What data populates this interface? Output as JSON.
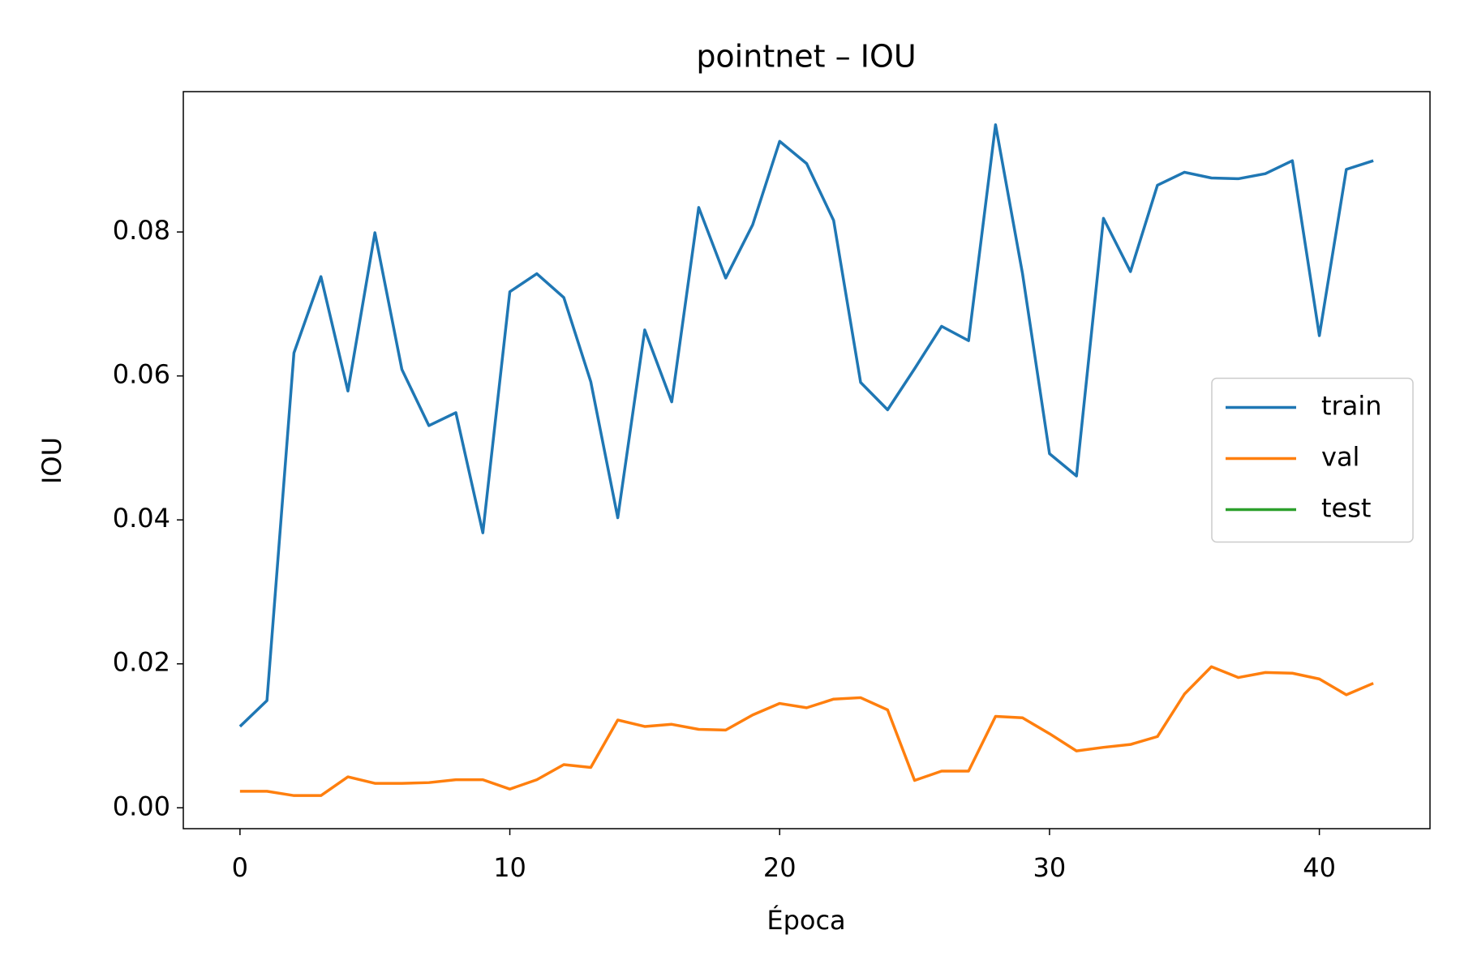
{
  "chart_data": {
    "type": "line",
    "title": "pointnet – IOU",
    "xlabel": "Época",
    "ylabel": "IOU",
    "x": [
      0,
      1,
      2,
      3,
      4,
      5,
      6,
      7,
      8,
      9,
      10,
      11,
      12,
      13,
      14,
      15,
      16,
      17,
      18,
      19,
      20,
      21,
      22,
      23,
      24,
      25,
      26,
      27,
      28,
      29,
      30,
      31,
      32,
      33,
      34,
      35,
      36,
      37,
      38,
      39,
      40,
      41,
      42
    ],
    "series": [
      {
        "name": "train",
        "color": "#1f77b4",
        "values": [
          0.0113,
          0.0149,
          0.0632,
          0.0738,
          0.0579,
          0.0799,
          0.0609,
          0.0531,
          0.0549,
          0.0382,
          0.0717,
          0.0742,
          0.0709,
          0.0592,
          0.0403,
          0.0664,
          0.0564,
          0.0834,
          0.0736,
          0.081,
          0.0926,
          0.0895,
          0.0816,
          0.0591,
          0.0553,
          0.061,
          0.0669,
          0.0649,
          0.0949,
          0.0742,
          0.0492,
          0.0461,
          0.0819,
          0.0745,
          0.0865,
          0.0883,
          0.0875,
          0.0874,
          0.0881,
          0.0899,
          0.0656,
          0.0887,
          0.0899
        ]
      },
      {
        "name": "val",
        "color": "#ff7f0e",
        "values": [
          0.0023,
          0.0023,
          0.0017,
          0.0017,
          0.0043,
          0.0034,
          0.0034,
          0.0035,
          0.0039,
          0.0039,
          0.0026,
          0.0039,
          0.006,
          0.0056,
          0.0122,
          0.0113,
          0.0116,
          0.0109,
          0.0108,
          0.0129,
          0.0145,
          0.0139,
          0.0151,
          0.0153,
          0.0136,
          0.0038,
          0.0051,
          0.0051,
          0.0127,
          0.0125,
          0.0103,
          0.0079,
          0.0084,
          0.0088,
          0.0099,
          0.0158,
          0.0196,
          0.0181,
          0.0188,
          0.0187,
          0.0179,
          0.0157,
          0.0173
        ]
      },
      {
        "name": "test",
        "color": "#2ca02c",
        "values": [
          null,
          null,
          null,
          null,
          null,
          null,
          null,
          null,
          null,
          null,
          null,
          null,
          null,
          null,
          null,
          null,
          null,
          null,
          null,
          null,
          null,
          null,
          null,
          null,
          null,
          null,
          null,
          null,
          null,
          null,
          null,
          null,
          null,
          null,
          null,
          null,
          null,
          null,
          null,
          null,
          null,
          null,
          null
        ]
      }
    ],
    "xlim": [
      -2.1,
      44.1
    ],
    "xticks": [
      0,
      10,
      20,
      30,
      40
    ],
    "ylim": [
      -0.0029,
      0.0995
    ],
    "yticks": [
      {
        "value": 0,
        "label": "0.00"
      },
      0.02,
      0.04,
      0.06,
      0.08
    ],
    "grid": false,
    "legend": "center right"
  }
}
